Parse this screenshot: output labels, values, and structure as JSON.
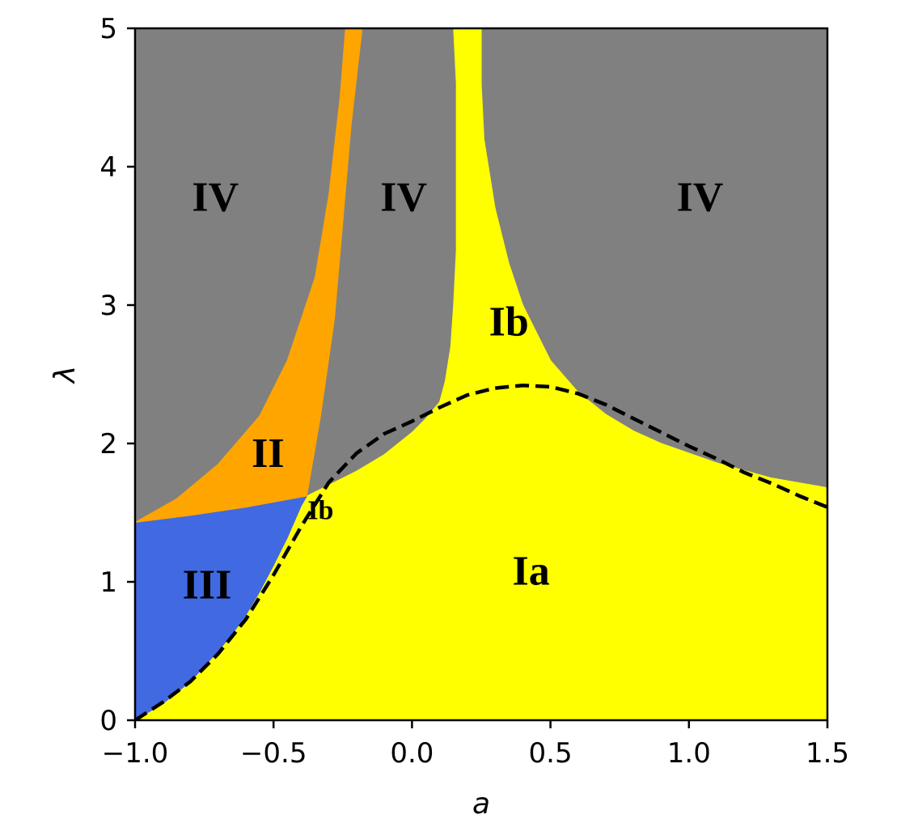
{
  "chart_data": {
    "type": "heatmap",
    "title": "",
    "xlabel": "a",
    "ylabel": "λ",
    "xlim": [
      -1.0,
      1.5
    ],
    "ylim": [
      0,
      5
    ],
    "x_ticks": [
      {
        "value": -1.0,
        "label": "−1.0"
      },
      {
        "value": -0.5,
        "label": "−0.5"
      },
      {
        "value": 0.0,
        "label": "0.0"
      },
      {
        "value": 0.5,
        "label": "0.5"
      },
      {
        "value": 1.0,
        "label": "1.0"
      },
      {
        "value": 1.5,
        "label": "1.5"
      }
    ],
    "y_ticks": [
      {
        "value": 0,
        "label": "0"
      },
      {
        "value": 1,
        "label": "1"
      },
      {
        "value": 2,
        "label": "2"
      },
      {
        "value": 3,
        "label": "3"
      },
      {
        "value": 4,
        "label": "4"
      },
      {
        "value": 5,
        "label": "5"
      }
    ],
    "colors": {
      "IV": "#808080",
      "II": "#ffa500",
      "III": "#4169e1",
      "I": "#ffff00",
      "dashed": "#000000"
    },
    "regions": [
      {
        "name": "IV",
        "color_key": "IV",
        "points": [
          [
            -1.0,
            5.0
          ],
          [
            1.5,
            5.0
          ],
          [
            1.5,
            1.43
          ],
          [
            -1.0,
            1.43
          ]
        ]
      },
      {
        "name": "Ia",
        "color_key": "I",
        "points": [
          [
            -1.0,
            0.0
          ],
          [
            1.5,
            0.0
          ],
          [
            1.5,
            1.68
          ],
          [
            1.3,
            1.75
          ],
          [
            1.1,
            1.86
          ],
          [
            0.9,
            2.0
          ],
          [
            0.8,
            2.09
          ],
          [
            0.7,
            2.21
          ],
          [
            0.6,
            2.37
          ],
          [
            0.5,
            2.6
          ],
          [
            0.4,
            3.0
          ],
          [
            0.35,
            3.3
          ],
          [
            0.3,
            3.7
          ],
          [
            0.26,
            4.2
          ],
          [
            0.25,
            4.6
          ],
          [
            0.25,
            5.0
          ],
          [
            0.15,
            5.0
          ],
          [
            0.16,
            4.6
          ],
          [
            0.16,
            4.0
          ],
          [
            0.16,
            3.4
          ],
          [
            0.15,
            3.0
          ],
          [
            0.14,
            2.7
          ],
          [
            0.12,
            2.45
          ],
          [
            0.1,
            2.3
          ],
          [
            0.05,
            2.18
          ],
          [
            0.0,
            2.08
          ],
          [
            -0.1,
            1.92
          ],
          [
            -0.2,
            1.8
          ],
          [
            -0.3,
            1.7
          ],
          [
            -0.38,
            1.62
          ],
          [
            -0.4,
            1.55
          ],
          [
            -0.45,
            1.32
          ],
          [
            -0.5,
            1.12
          ],
          [
            -0.55,
            0.93
          ],
          [
            -0.6,
            0.76
          ],
          [
            -0.65,
            0.62
          ],
          [
            -0.7,
            0.5
          ],
          [
            -0.8,
            0.28
          ],
          [
            -0.9,
            0.12
          ],
          [
            -1.0,
            0.0
          ]
        ]
      },
      {
        "name": "III",
        "color_key": "III",
        "points": [
          [
            -1.0,
            0.0
          ],
          [
            -0.9,
            0.12
          ],
          [
            -0.8,
            0.28
          ],
          [
            -0.7,
            0.5
          ],
          [
            -0.65,
            0.62
          ],
          [
            -0.6,
            0.76
          ],
          [
            -0.55,
            0.93
          ],
          [
            -0.5,
            1.12
          ],
          [
            -0.45,
            1.32
          ],
          [
            -0.4,
            1.55
          ],
          [
            -0.38,
            1.62
          ],
          [
            -0.6,
            1.54
          ],
          [
            -0.8,
            1.48
          ],
          [
            -1.0,
            1.43
          ]
        ]
      },
      {
        "name": "II",
        "color_key": "II",
        "points": [
          [
            -1.0,
            1.43
          ],
          [
            -0.8,
            1.48
          ],
          [
            -0.6,
            1.54
          ],
          [
            -0.38,
            1.62
          ],
          [
            -0.33,
            2.2
          ],
          [
            -0.28,
            2.9
          ],
          [
            -0.25,
            3.6
          ],
          [
            -0.22,
            4.3
          ],
          [
            -0.18,
            5.0
          ],
          [
            -0.24,
            5.0
          ],
          [
            -0.26,
            4.5
          ],
          [
            -0.3,
            3.8
          ],
          [
            -0.35,
            3.2
          ],
          [
            -0.45,
            2.6
          ],
          [
            -0.55,
            2.2
          ],
          [
            -0.7,
            1.85
          ],
          [
            -0.85,
            1.6
          ],
          [
            -1.0,
            1.43
          ]
        ]
      }
    ],
    "dashed_curve": {
      "x": [
        -1.0,
        -0.9,
        -0.8,
        -0.7,
        -0.6,
        -0.5,
        -0.4,
        -0.3,
        -0.2,
        -0.1,
        0.0,
        0.1,
        0.2,
        0.3,
        0.4,
        0.5,
        0.6,
        0.7,
        0.8,
        0.9,
        1.0,
        1.1,
        1.2,
        1.3,
        1.4,
        1.5
      ],
      "y": [
        0.0,
        0.13,
        0.28,
        0.48,
        0.73,
        1.05,
        1.4,
        1.72,
        1.93,
        2.07,
        2.16,
        2.26,
        2.35,
        2.4,
        2.42,
        2.41,
        2.36,
        2.28,
        2.18,
        2.08,
        1.98,
        1.89,
        1.79,
        1.71,
        1.62,
        1.54
      ]
    },
    "labels": [
      {
        "text": "IV",
        "x": -0.71,
        "y": 3.75,
        "size": "large"
      },
      {
        "text": "IV",
        "x": -0.03,
        "y": 3.75,
        "size": "large"
      },
      {
        "text": "IV",
        "x": 1.04,
        "y": 3.75,
        "size": "large"
      },
      {
        "text": "Ib",
        "x": 0.35,
        "y": 2.85,
        "size": "large"
      },
      {
        "text": "II",
        "x": -0.52,
        "y": 1.9,
        "size": "large"
      },
      {
        "text": "Ib",
        "x": -0.33,
        "y": 1.5,
        "size": "small"
      },
      {
        "text": "III",
        "x": -0.74,
        "y": 0.95,
        "size": "large"
      },
      {
        "text": "Ia",
        "x": 0.43,
        "y": 1.05,
        "size": "large"
      }
    ]
  }
}
